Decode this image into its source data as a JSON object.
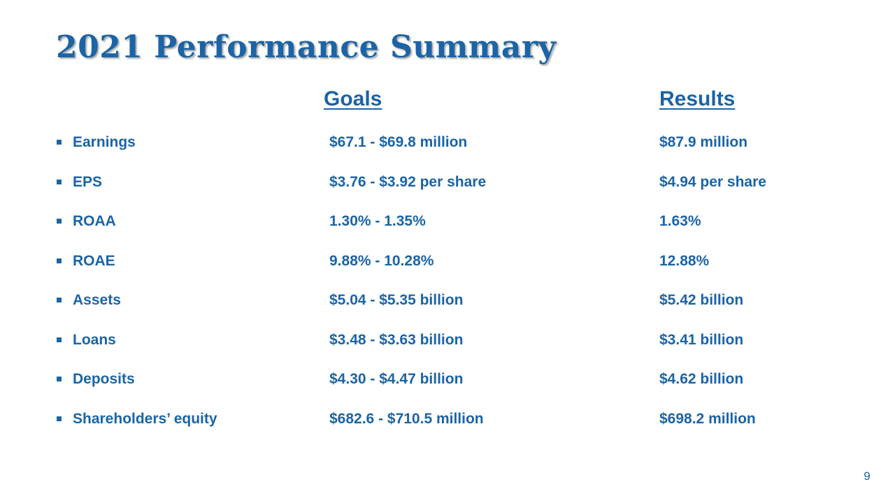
{
  "slide": {
    "title": "2021 Performance Summary",
    "page_number": "9"
  },
  "table": {
    "headers": {
      "goals": "Goals",
      "results": "Results"
    },
    "rows": [
      {
        "metric": "Earnings",
        "goal": "$67.1 - $69.8 million",
        "result": "$87.9 million"
      },
      {
        "metric": "EPS",
        "goal": "$3.76 - $3.92 per share",
        "result": "$4.94 per share"
      },
      {
        "metric": "ROAA",
        "goal": "1.30%  - 1.35%",
        "result": "1.63%"
      },
      {
        "metric": "ROAE",
        "goal": "9.88%  - 10.28%",
        "result": "12.88%"
      },
      {
        "metric": "Assets",
        "goal": "$5.04 - $5.35 billion",
        "result": "$5.42 billion"
      },
      {
        "metric": "Loans",
        "goal": "$3.48 - $3.63 billion",
        "result": "$3.41 billion"
      },
      {
        "metric": "Deposits",
        "goal": "$4.30 - $4.47 billion",
        "result": "$4.62 billion"
      },
      {
        "metric": "Shareholders’ equity",
        "goal": "$682.6 - $710.5 million",
        "result": "$698.2 million"
      }
    ]
  },
  "colors": {
    "text": "#1b64a6",
    "background": "#ffffff"
  },
  "icons": {
    "bullet": "square-bullet-icon"
  }
}
